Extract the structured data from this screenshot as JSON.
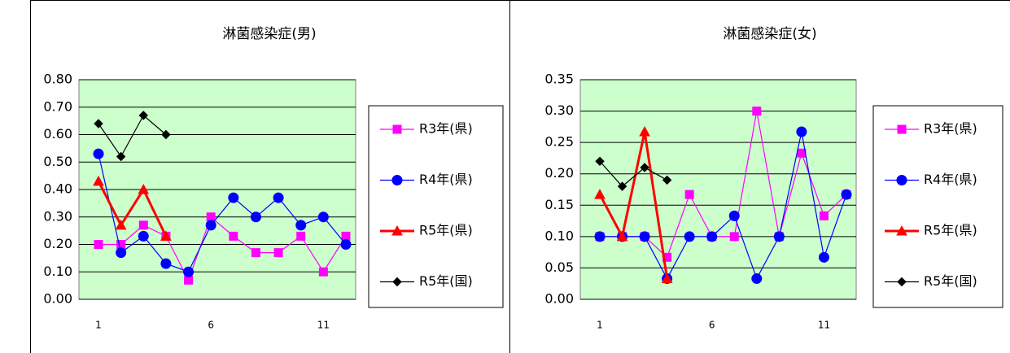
{
  "chart_data": [
    {
      "type": "line",
      "title": "淋菌感染症(男)",
      "categories": [
        "1",
        null,
        null,
        null,
        null,
        "6",
        null,
        null,
        null,
        null,
        "11",
        null
      ],
      "ylim": [
        0,
        0.8
      ],
      "yticks": [
        {
          "value": 0,
          "label": "0.00"
        },
        {
          "value": 0.1,
          "label": "0.10"
        },
        {
          "value": 0.2,
          "label": "0.20"
        },
        {
          "value": 0.3,
          "label": "0.30"
        },
        {
          "value": 0.4,
          "label": "0.40"
        },
        {
          "value": 0.5,
          "label": "0.50"
        },
        {
          "value": 0.6,
          "label": "0.60"
        },
        {
          "value": 0.7,
          "label": "0.70"
        },
        {
          "value": 0.8,
          "label": "0.80"
        }
      ],
      "grid": true,
      "legend": "right",
      "series": [
        {
          "name": "R3年(県)",
          "color": "#ff00ff",
          "marker": "square",
          "values": [
            0.2,
            0.2,
            0.27,
            0.23,
            0.07,
            0.3,
            0.23,
            0.17,
            0.17,
            0.23,
            0.1,
            0.23
          ]
        },
        {
          "name": "R4年(県)",
          "color": "#0000ff",
          "marker": "circle",
          "values": [
            0.53,
            0.17,
            0.23,
            0.13,
            0.1,
            0.27,
            0.37,
            0.3,
            0.37,
            0.27,
            0.3,
            0.2
          ]
        },
        {
          "name": "R5年(県)",
          "color": "#ff0000",
          "marker": "triangle",
          "values": [
            0.43,
            0.27,
            0.4,
            0.23,
            null,
            null,
            null,
            null,
            null,
            null,
            null,
            null
          ]
        },
        {
          "name": "R5年(国)",
          "color": "#000000",
          "marker": "diamond",
          "values": [
            0.64,
            0.52,
            0.67,
            0.6,
            null,
            null,
            null,
            null,
            null,
            null,
            null,
            null
          ]
        }
      ]
    },
    {
      "type": "line",
      "title": "淋菌感染症(女)",
      "categories": [
        "1",
        null,
        null,
        null,
        null,
        "6",
        null,
        null,
        null,
        null,
        "11",
        null
      ],
      "ylim": [
        0,
        0.35
      ],
      "yticks": [
        {
          "value": 0,
          "label": "0.00"
        },
        0.05,
        {
          "value": 0.1,
          "label": "0.10"
        },
        0.15,
        {
          "value": 0.2,
          "label": "0.20"
        },
        0.25,
        {
          "value": 0.3,
          "label": "0.30"
        },
        0.35
      ],
      "grid": true,
      "legend": "right",
      "series": [
        {
          "name": "R3年(県)",
          "color": "#ff00ff",
          "marker": "square",
          "values": [
            0.1,
            0.1,
            0.1,
            0.067,
            0.167,
            0.1,
            0.1,
            0.3,
            0.1,
            0.233,
            0.133,
            0.167
          ]
        },
        {
          "name": "R4年(県)",
          "color": "#0000ff",
          "marker": "circle",
          "values": [
            0.1,
            0.1,
            0.1,
            0.033,
            0.1,
            0.1,
            0.133,
            0.033,
            0.1,
            0.267,
            0.067,
            0.167
          ]
        },
        {
          "name": "R5年(県)",
          "color": "#ff0000",
          "marker": "triangle",
          "values": [
            0.167,
            0.1,
            0.267,
            0.033,
            null,
            null,
            null,
            null,
            null,
            null,
            null,
            null
          ]
        },
        {
          "name": "R5年(国)",
          "color": "#000000",
          "marker": "diamond",
          "values": [
            0.22,
            0.18,
            0.21,
            0.19,
            null,
            null,
            null,
            null,
            null,
            null,
            null,
            null
          ]
        }
      ]
    }
  ]
}
